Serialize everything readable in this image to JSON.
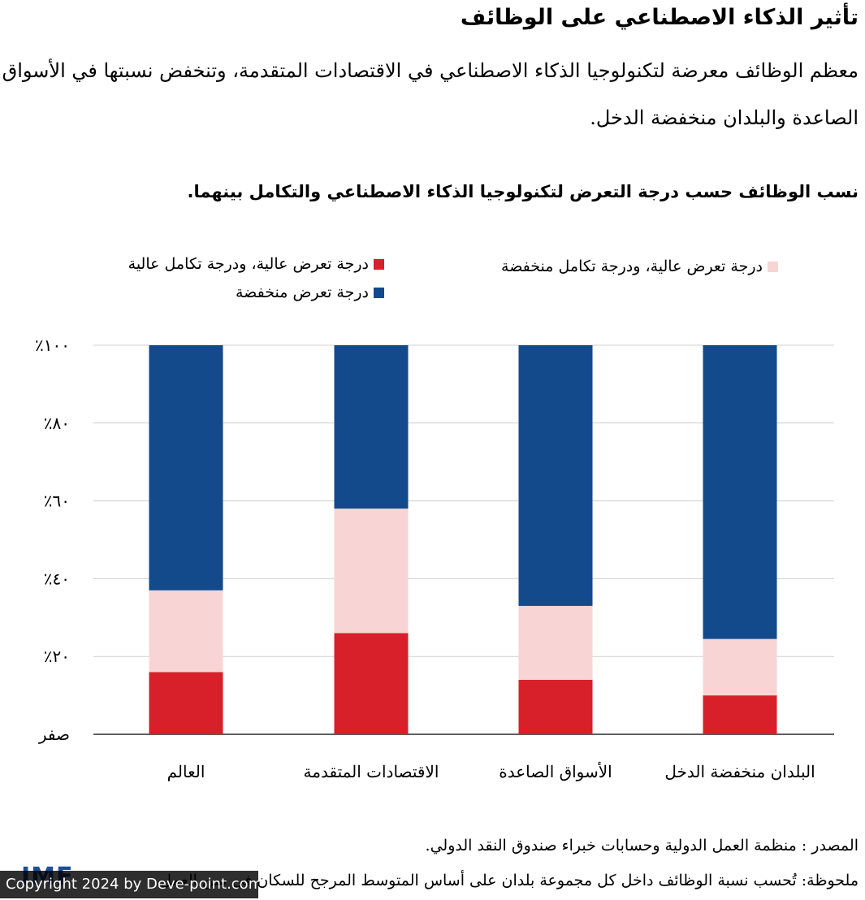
{
  "header": {
    "title": "تأثير الذكاء الاصطناعي على الوظائف",
    "subtitle": "معظم الوظائف معرضة لتكنولوجيا الذكاء الاصطناعي في الاقتصادات المتقدمة، وتنخفض نسبتها في الأسواق الصاعدة والبلدان منخفضة الدخل."
  },
  "chart_data": {
    "type": "bar",
    "stacked": true,
    "title": "نسب الوظائف حسب درجة التعرض لتكنولوجيا الذكاء الاصطناعي والتكامل بينهما.",
    "categories": [
      "العالم",
      "الاقتصادات المتقدمة",
      "الأسواق الصاعدة",
      "البلدان منخفضة الدخل"
    ],
    "series": [
      {
        "name": "درجة تعرض عالية، ودرجة تكامل عالية",
        "color": "#d7202a",
        "values": [
          16,
          26,
          14,
          10
        ]
      },
      {
        "name": "درجة تعرض عالية، ودرجة تكامل منخفضة",
        "color": "#f9d4d4",
        "values": [
          21,
          32,
          19,
          14.5
        ]
      },
      {
        "name": "درجة تعرض منخفضة",
        "color": "#124a8c",
        "values": [
          63,
          42,
          67,
          75.5
        ]
      }
    ],
    "y_ticks": [
      {
        "value": 0,
        "label": "صفر"
      },
      {
        "value": 20,
        "label": "٪٢٠"
      },
      {
        "value": 40,
        "label": "٪٤٠"
      },
      {
        "value": 60,
        "label": "٪٦٠"
      },
      {
        "value": 80,
        "label": "٪٨٠"
      },
      {
        "value": 100,
        "label": "٪١٠٠"
      }
    ],
    "ylim": [
      0,
      100
    ],
    "grid": true,
    "legend": "top"
  },
  "footer": {
    "source": "المصدر : منظمة العمل الدولية وحسابات خبراء صندوق النقد الدولي.",
    "note": "ملحوظة: تُحسب نسبة الوظائف داخل كل مجموعة بلدان على أساس المتوسط المرجح للسكان في سن العمل.",
    "logo": "IMF",
    "watermark": "Copyright 2024 by Deve-point.com"
  }
}
